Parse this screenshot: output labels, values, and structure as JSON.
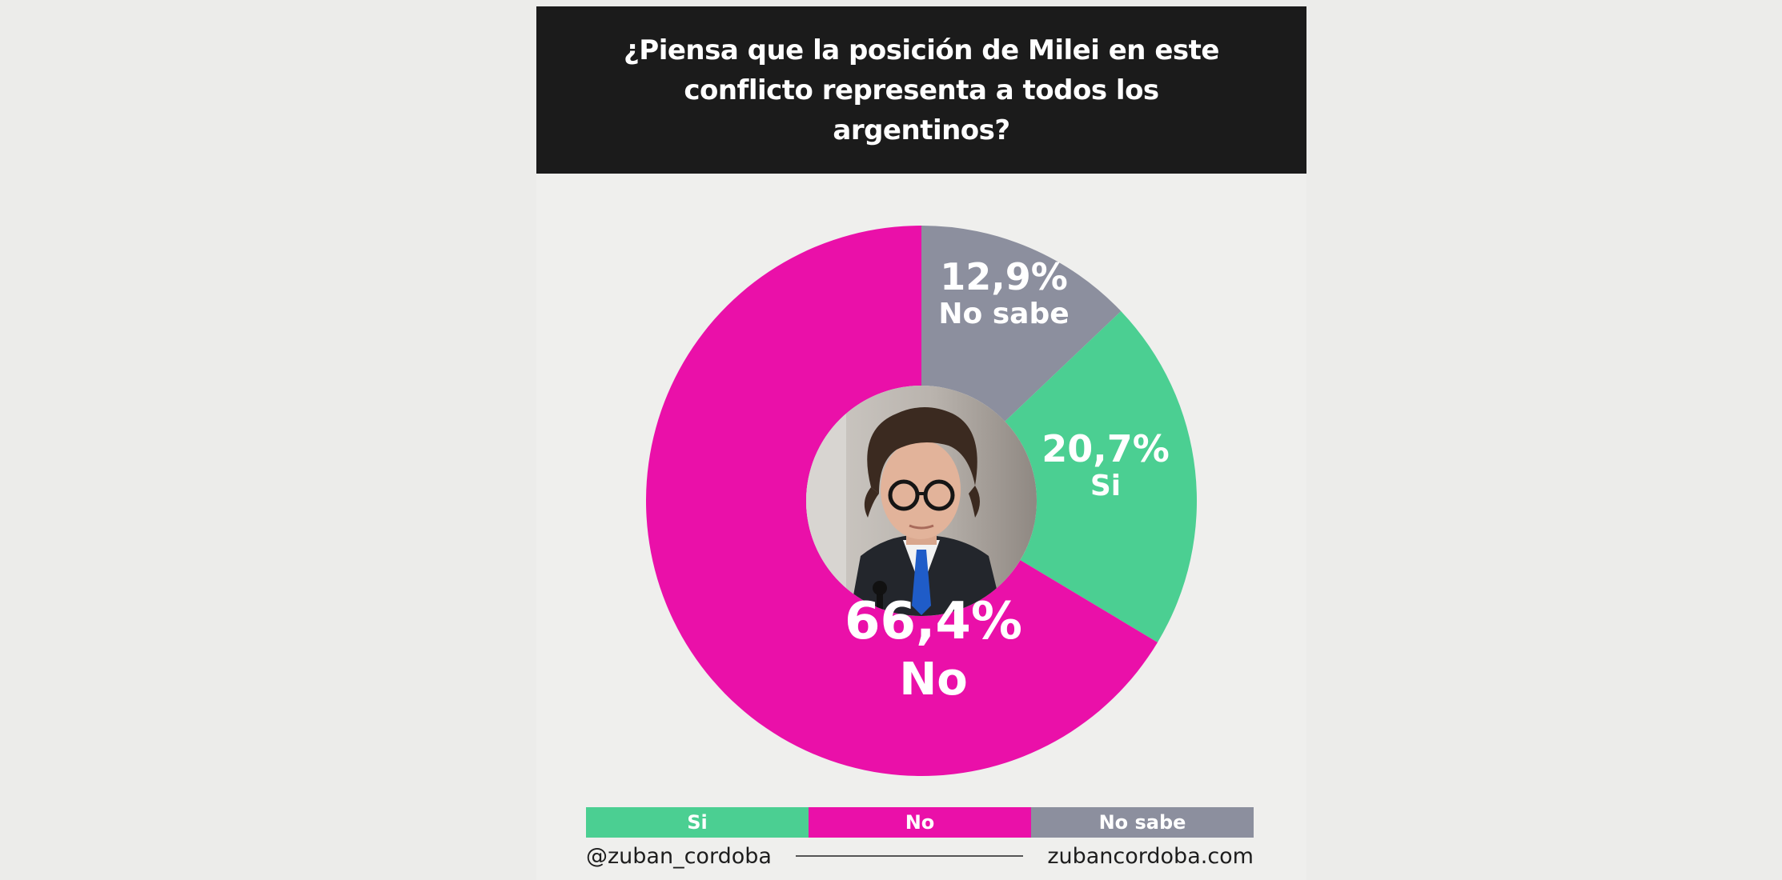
{
  "chart_data": {
    "type": "pie",
    "title": "¿Piensa que la posición de Milei en este conflicto representa a todos los argentinos?",
    "slices": [
      {
        "label": "Si",
        "value": 20.7,
        "display": "20,7%",
        "color": "#4bcf92"
      },
      {
        "label": "No",
        "value": 66.4,
        "display": "66,4%",
        "color": "#ea10a9"
      },
      {
        "label": "No sabe",
        "value": 12.9,
        "display": "12,9%",
        "color": "#8c8f9e"
      }
    ],
    "legend": [
      "Si",
      "No",
      "No sabe"
    ],
    "legend_placement": "bottom"
  },
  "center_image": "portrait-photo",
  "footer": {
    "handle": "@zuban_cordoba",
    "site": "zubancordoba.com"
  }
}
